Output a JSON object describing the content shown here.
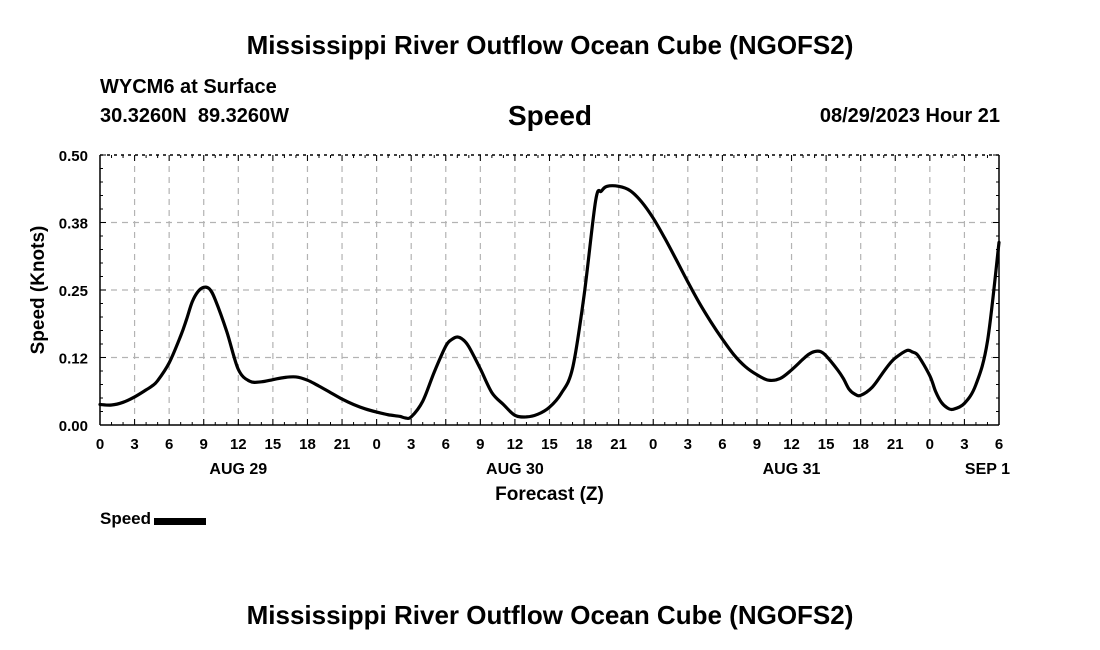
{
  "header": {
    "title": "Mississippi River Outflow Ocean Cube (NGOFS2)",
    "station": "WYCM6 at Surface",
    "coords": "30.3260N  89.3260W",
    "chart_title": "Speed",
    "forecast_time": "08/29/2023 Hour 21"
  },
  "footer": {
    "title": "Mississippi River Outflow Ocean Cube (NGOFS2)"
  },
  "chart_data": {
    "type": "line",
    "title": "Speed",
    "xlabel": "Forecast (Z)",
    "ylabel": "Speed (Knots)",
    "xlim": [
      0,
      78
    ],
    "ylim": [
      0,
      0.5
    ],
    "y_ticks": [
      0.0,
      0.125,
      0.25,
      0.375,
      0.5
    ],
    "y_tick_labels": [
      "0.00",
      "0.12",
      "0.25",
      "0.38",
      "0.50"
    ],
    "x_tick_labels": [
      "0",
      "3",
      "6",
      "9",
      "12",
      "15",
      "18",
      "21",
      "0",
      "3",
      "6",
      "9",
      "12",
      "15",
      "18",
      "21",
      "0",
      "3",
      "6",
      "9",
      "12",
      "15",
      "18",
      "21",
      "0",
      "3",
      "6"
    ],
    "date_labels": [
      {
        "hour": 12,
        "label": "AUG 29"
      },
      {
        "hour": 36,
        "label": "AUG 30"
      },
      {
        "hour": 60,
        "label": "AUG 31"
      },
      {
        "hour": 77,
        "label": "SEP 1"
      }
    ],
    "grid": true,
    "legend_position": "bottom-left",
    "series": [
      {
        "name": "Speed",
        "color": "#000000",
        "x": [
          0,
          1,
          2,
          3,
          4,
          4.5,
          5,
          6,
          7,
          7.5,
          8,
          8.5,
          9,
          9.5,
          10,
          11,
          12,
          13,
          14,
          15,
          16,
          17,
          18,
          19,
          20,
          21,
          22,
          23,
          24,
          25,
          26,
          26.5,
          27,
          28,
          29,
          30,
          30.5,
          31,
          31.5,
          32,
          33,
          34,
          35,
          36,
          37,
          38,
          39,
          40,
          41,
          42,
          43,
          43.5,
          44,
          45,
          46,
          47,
          48,
          49,
          50,
          51,
          52,
          53,
          54,
          55,
          56,
          57,
          58,
          59,
          60,
          61,
          61.5,
          62,
          62.5,
          63,
          64,
          64.5,
          65,
          65.5,
          66,
          67,
          68,
          68.5,
          69,
          70,
          70.5,
          71,
          72,
          72.5,
          73,
          73.5,
          74,
          75,
          76,
          77,
          78
        ],
        "values": [
          0.038,
          0.037,
          0.042,
          0.052,
          0.065,
          0.072,
          0.082,
          0.115,
          0.165,
          0.195,
          0.228,
          0.247,
          0.255,
          0.252,
          0.232,
          0.173,
          0.103,
          0.081,
          0.08,
          0.084,
          0.088,
          0.089,
          0.083,
          0.072,
          0.06,
          0.048,
          0.038,
          0.03,
          0.024,
          0.019,
          0.016,
          0.013,
          0.015,
          0.044,
          0.098,
          0.146,
          0.158,
          0.163,
          0.158,
          0.145,
          0.104,
          0.06,
          0.038,
          0.018,
          0.015,
          0.02,
          0.033,
          0.058,
          0.105,
          0.24,
          0.415,
          0.433,
          0.442,
          0.442,
          0.434,
          0.413,
          0.383,
          0.346,
          0.306,
          0.265,
          0.226,
          0.191,
          0.159,
          0.13,
          0.108,
          0.093,
          0.083,
          0.086,
          0.102,
          0.122,
          0.131,
          0.136,
          0.136,
          0.128,
          0.102,
          0.086,
          0.066,
          0.057,
          0.055,
          0.07,
          0.099,
          0.113,
          0.124,
          0.138,
          0.135,
          0.128,
          0.091,
          0.062,
          0.042,
          0.032,
          0.029,
          0.04,
          0.075,
          0.155,
          0.338
        ]
      }
    ]
  }
}
